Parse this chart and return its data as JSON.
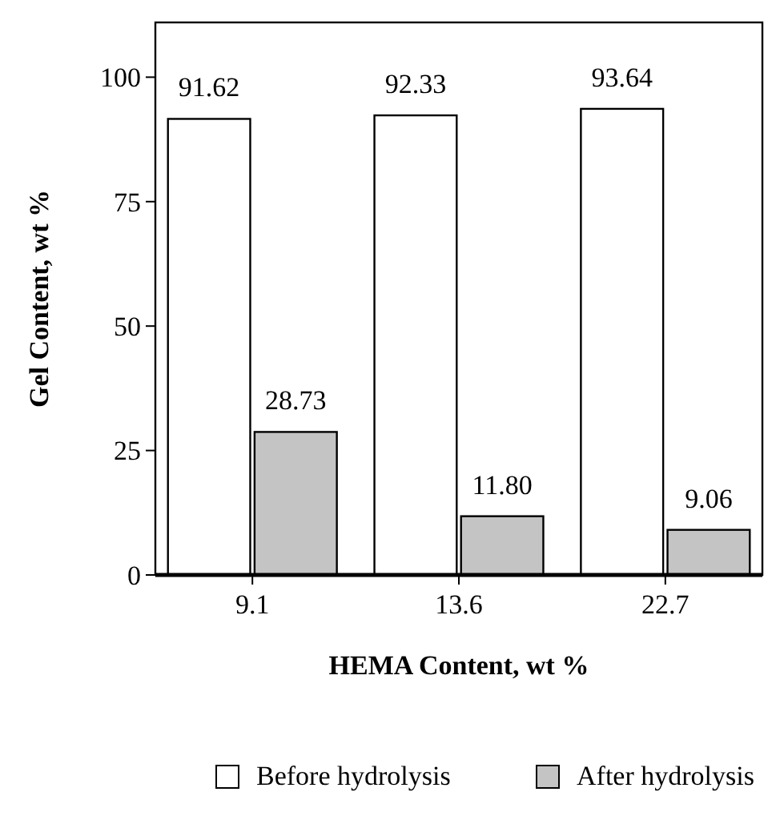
{
  "chart_data": {
    "type": "bar",
    "xlabel": "HEMA Content, wt %",
    "ylabel": "Gel Content, wt %",
    "categories": [
      "9.1",
      "13.6",
      "22.7"
    ],
    "series": [
      {
        "name": "Before hydrolysis",
        "color": "#ffffff",
        "values": [
          91.62,
          92.33,
          93.64
        ],
        "value_labels": [
          "91.62",
          "92.33",
          "93.64"
        ]
      },
      {
        "name": "After hydrolysis",
        "color": "#c4c4c4",
        "values": [
          28.73,
          11.8,
          9.06
        ],
        "value_labels": [
          "28.73",
          "11.80",
          "9.06"
        ]
      }
    ],
    "ylim": [
      0,
      111
    ],
    "yticks": [
      0,
      25,
      50,
      75,
      100
    ],
    "legend": "bottom",
    "grid": false
  }
}
